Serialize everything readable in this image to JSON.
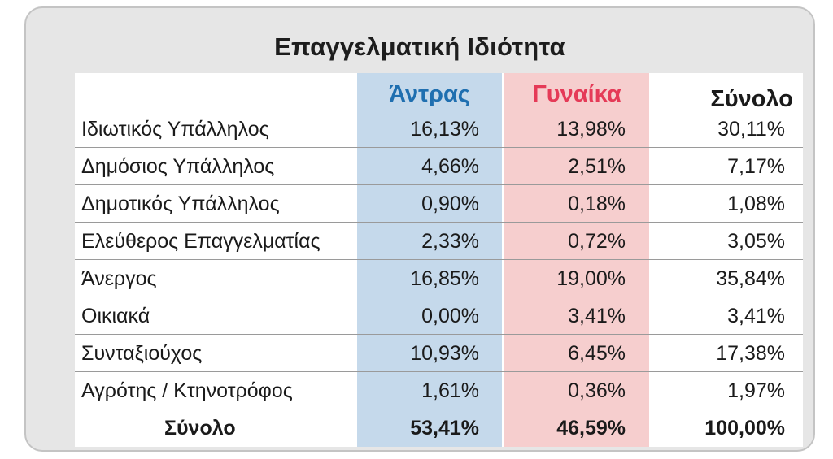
{
  "title": "Επαγγελματική Ιδιότητα",
  "colors": {
    "men_text": "#1f6fb0",
    "women_text": "#e53a57",
    "men_bg": "#c5d9eb",
    "women_bg": "#f6cece"
  },
  "chart_data": {
    "type": "table",
    "title": "Επαγγελματική Ιδιότητα",
    "columns": [
      "Άντρας",
      "Γυναίκα",
      "Σύνολο"
    ],
    "rows": [
      {
        "label": "Ιδιωτικός Υπάλληλος",
        "men": "16,13%",
        "women": "13,98%",
        "total": "30,11%"
      },
      {
        "label": "Δημόσιος Υπάλληλος",
        "men": "4,66%",
        "women": "2,51%",
        "total": "7,17%"
      },
      {
        "label": "Δημοτικός Υπάλληλος",
        "men": "0,90%",
        "women": "0,18%",
        "total": "1,08%"
      },
      {
        "label": "Ελεύθερος Επαγγελματίας",
        "men": "2,33%",
        "women": "0,72%",
        "total": "3,05%"
      },
      {
        "label": "Άνεργος",
        "men": "16,85%",
        "women": "19,00%",
        "total": "35,84%"
      },
      {
        "label": "Οικιακά",
        "men": "0,00%",
        "women": "3,41%",
        "total": "3,41%"
      },
      {
        "label": "Συνταξιούχος",
        "men": "10,93%",
        "women": "6,45%",
        "total": "17,38%"
      },
      {
        "label": "Αγρότης / Κτηνοτρόφος",
        "men": "1,61%",
        "women": "0,36%",
        "total": "1,97%"
      }
    ],
    "total_row": {
      "label": "Σύνολο",
      "men": "53,41%",
      "women": "46,59%",
      "total": "100,00%"
    }
  }
}
